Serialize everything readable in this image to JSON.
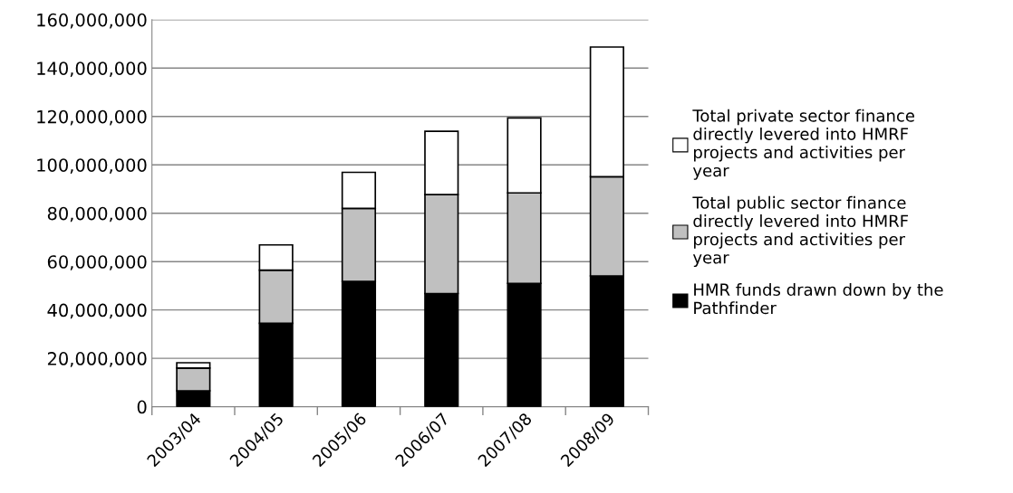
{
  "chart_data": {
    "type": "bar",
    "stacked": true,
    "categories": [
      "2003/04",
      "2004/05",
      "2005/06",
      "2006/07",
      "2007/08",
      "2008/09"
    ],
    "series": [
      {
        "name": "HMR funds drawn down by the Pathfinder",
        "color": "#000000",
        "values": [
          6600000,
          34500000,
          51800000,
          46800000,
          51000000,
          54100000
        ]
      },
      {
        "name": "Total public sector finance directly levered into HMRF projects and activities per year",
        "color": "#c0c0c0",
        "values": [
          9400000,
          22000000,
          30200000,
          40900000,
          37400000,
          41000000
        ]
      },
      {
        "name": "Total private sector finance directly levered into HMRF projects and activities per year",
        "color": "#ffffff",
        "values": [
          2200000,
          10400000,
          14900000,
          26200000,
          31000000,
          53600000
        ]
      }
    ],
    "ylim": [
      0,
      160000000
    ],
    "yticks": [
      0,
      {
        "value": 20000000,
        "label": "20,000,000"
      },
      {
        "value": 40000000,
        "label": "40,000,000"
      },
      {
        "value": 60000000,
        "label": "60,000,000"
      },
      {
        "value": 80000000,
        "label": "80,000,000"
      },
      {
        "value": 100000000,
        "label": "100,000,000"
      },
      {
        "value": 120000000,
        "label": "120,000,000"
      },
      {
        "value": 140000000,
        "label": "140,000,000"
      },
      {
        "value": 160000000,
        "label": "160,000,000"
      }
    ],
    "grid": "y",
    "legend": "right"
  }
}
